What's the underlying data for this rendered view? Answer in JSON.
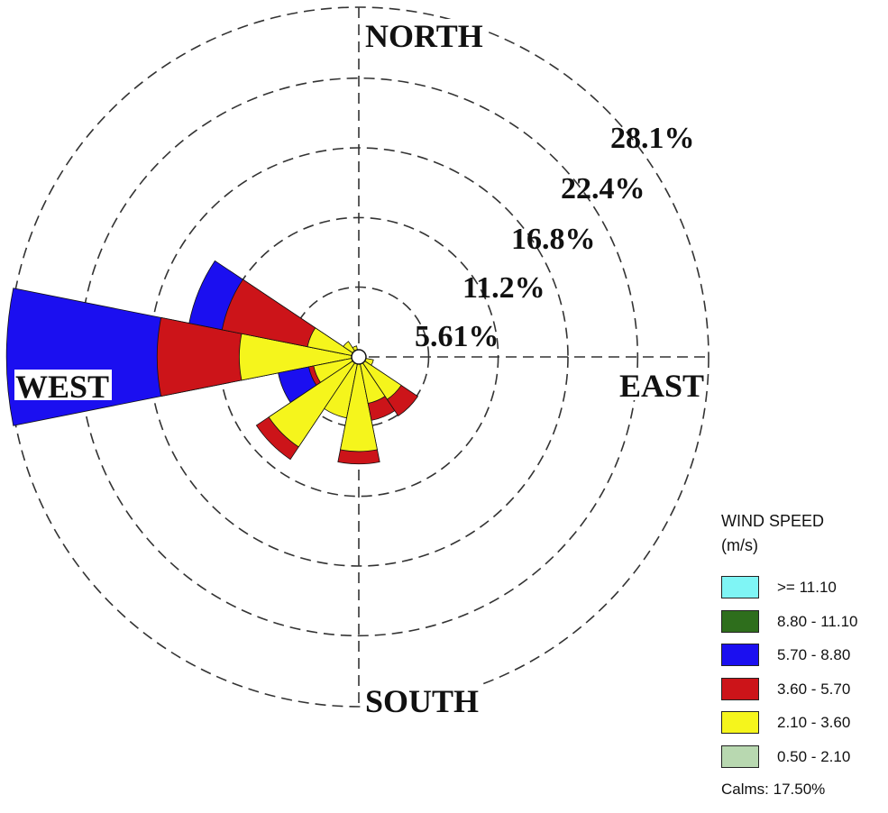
{
  "chart_data": {
    "type": "wind-rose",
    "directions": {
      "north": "NORTH",
      "east": "EAST",
      "south": "SOUTH",
      "west": "WEST"
    },
    "radial_labels": [
      "5.61%",
      "11.2%",
      "16.8%",
      "22.4%",
      "28.1%"
    ],
    "radial_values": [
      5.61,
      11.2,
      16.8,
      22.4,
      28.1
    ],
    "radial_max": 28.1,
    "grid": true,
    "legend": {
      "title_line1": "WIND SPEED",
      "title_line2": "(m/s)",
      "placement": "bottom-right",
      "calms": "Calms: 17.50%"
    },
    "speed_bins": [
      {
        "label": ">= 11.10",
        "color": "#7ff5f5"
      },
      {
        "label": "8.80 - 11.10",
        "color": "#2e6e1c"
      },
      {
        "label": "5.70 - 8.80",
        "color": "#1b0ff0"
      },
      {
        "label": "3.60 - 5.70",
        "color": "#cc1419"
      },
      {
        "label": "2.10 - 3.60",
        "color": "#f5f51c"
      },
      {
        "label": "0.50 - 2.10",
        "color": "#b8d8b0"
      }
    ],
    "sectors": [
      {
        "direction_deg": 270,
        "cumulative": {
          "0.50 - 2.10": 0.3,
          "2.10 - 3.60": 9.6,
          "3.60 - 5.70": 16.2,
          "5.70 - 8.80": 28.3
        }
      },
      {
        "direction_deg": 292.5,
        "cumulative": {
          "0.50 - 2.10": 0.3,
          "2.10 - 3.60": 4.2,
          "3.60 - 5.70": 11.2,
          "5.70 - 8.80": 13.9
        }
      },
      {
        "direction_deg": 315,
        "cumulative": {
          "0.50 - 2.10": 0.2,
          "2.10 - 3.60": 1.5
        }
      },
      {
        "direction_deg": 337.5,
        "cumulative": {
          "0.50 - 2.10": 0.2,
          "2.10 - 3.60": 0.9
        }
      },
      {
        "direction_deg": 247.5,
        "cumulative": {
          "0.50 - 2.10": 0.3,
          "2.10 - 3.60": 3.7,
          "3.60 - 5.70": 4.1,
          "5.70 - 8.80": 6.6
        }
      },
      {
        "direction_deg": 225,
        "cumulative": {
          "0.50 - 2.10": 0.3,
          "2.10 - 3.60": 8.7,
          "3.60 - 5.70": 9.9
        }
      },
      {
        "direction_deg": 202.5,
        "cumulative": {
          "0.50 - 2.10": 0.3,
          "2.10 - 3.60": 5.0
        }
      },
      {
        "direction_deg": 180,
        "cumulative": {
          "0.50 - 2.10": 0.3,
          "2.10 - 3.60": 7.6,
          "3.60 - 5.70": 8.6
        }
      },
      {
        "direction_deg": 157.5,
        "cumulative": {
          "0.50 - 2.10": 0.3,
          "2.10 - 3.60": 3.8,
          "3.60 - 5.70": 5.2
        }
      },
      {
        "direction_deg": 135,
        "cumulative": {
          "0.50 - 2.10": 0.3,
          "2.10 - 3.60": 4.1,
          "3.60 - 5.70": 5.7
        }
      },
      {
        "direction_deg": 112.5,
        "cumulative": {
          "0.50 - 2.10": 0.2,
          "2.10 - 3.60": 1.2
        }
      }
    ]
  }
}
